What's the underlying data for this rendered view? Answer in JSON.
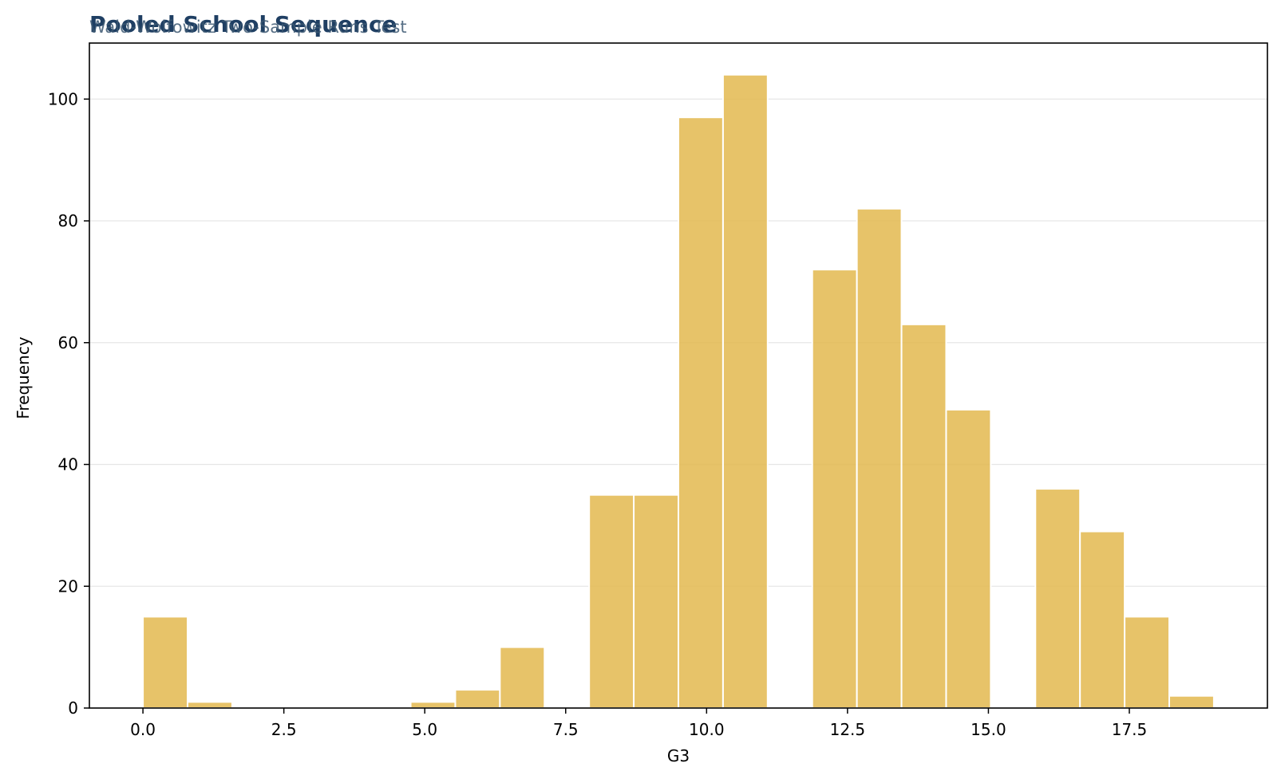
{
  "chart_data": {
    "type": "bar",
    "title": "Pooled School Sequence",
    "subtitle": "Wald-Wolfowitz Two-Sample Runs Test",
    "xlabel": "G3",
    "ylabel": "Frequency",
    "xlim": [
      -0.95,
      19.95
    ],
    "ylim": [
      0,
      109.2
    ],
    "xticks": [
      0.0,
      2.5,
      5.0,
      7.5,
      10.0,
      12.5,
      15.0,
      17.5
    ],
    "xtick_labels": [
      "0.0",
      "2.5",
      "5.0",
      "7.5",
      "10.0",
      "12.5",
      "15.0",
      "17.5"
    ],
    "yticks": [
      0,
      20,
      40,
      60,
      80,
      100
    ],
    "ytick_labels": [
      "0",
      "20",
      "40",
      "60",
      "80",
      "100"
    ],
    "grid": "horizontal",
    "bar_color": "#e3b94f",
    "bins": [
      {
        "start": 0.0,
        "end": 0.7917,
        "count": 15
      },
      {
        "start": 0.7917,
        "end": 1.5833,
        "count": 1
      },
      {
        "start": 1.5833,
        "end": 2.375,
        "count": 0
      },
      {
        "start": 2.375,
        "end": 3.1667,
        "count": 0
      },
      {
        "start": 3.1667,
        "end": 3.9583,
        "count": 0
      },
      {
        "start": 3.9583,
        "end": 4.75,
        "count": 0
      },
      {
        "start": 4.75,
        "end": 5.5417,
        "count": 1
      },
      {
        "start": 5.5417,
        "end": 6.3333,
        "count": 3
      },
      {
        "start": 6.3333,
        "end": 7.125,
        "count": 10
      },
      {
        "start": 7.125,
        "end": 7.9167,
        "count": 0
      },
      {
        "start": 7.9167,
        "end": 8.7083,
        "count": 35
      },
      {
        "start": 8.7083,
        "end": 9.5,
        "count": 35
      },
      {
        "start": 9.5,
        "end": 10.2917,
        "count": 97
      },
      {
        "start": 10.2917,
        "end": 11.0833,
        "count": 104
      },
      {
        "start": 11.0833,
        "end": 11.875,
        "count": 0
      },
      {
        "start": 11.875,
        "end": 12.6667,
        "count": 72
      },
      {
        "start": 12.6667,
        "end": 13.4583,
        "count": 82
      },
      {
        "start": 13.4583,
        "end": 14.25,
        "count": 63
      },
      {
        "start": 14.25,
        "end": 15.0417,
        "count": 49
      },
      {
        "start": 15.0417,
        "end": 15.8333,
        "count": 0
      },
      {
        "start": 15.8333,
        "end": 16.625,
        "count": 36
      },
      {
        "start": 16.625,
        "end": 17.4167,
        "count": 29
      },
      {
        "start": 17.4167,
        "end": 18.2083,
        "count": 15
      },
      {
        "start": 18.2083,
        "end": 19.0,
        "count": 2
      }
    ]
  }
}
